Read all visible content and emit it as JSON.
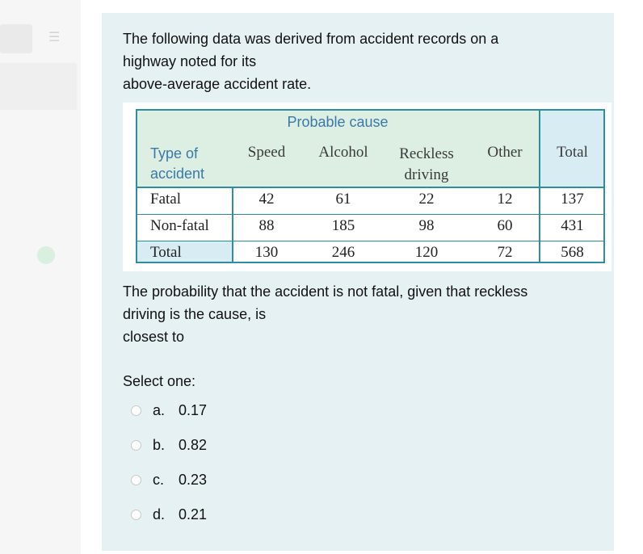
{
  "question": {
    "lines": [
      "The following data was derived from accident records on a",
      "highway noted for its",
      "above-average accident rate."
    ]
  },
  "table": {
    "group_header": "Probable cause",
    "row_header": [
      "Type of",
      "accident"
    ],
    "columns": [
      "Speed",
      "Alcohol",
      "Reckless",
      "driving",
      "Other",
      "Total"
    ],
    "rows": [
      {
        "label": "Fatal",
        "values": [
          "42",
          "61",
          "22",
          "12",
          "137"
        ]
      },
      {
        "label": "Non-fatal",
        "values": [
          "88",
          "185",
          "98",
          "60",
          "431"
        ]
      },
      {
        "label": "Total",
        "values": [
          "130",
          "246",
          "120",
          "72",
          "568"
        ]
      }
    ]
  },
  "followup": {
    "lines": [
      "The probability that the accident is not fatal, given that reckless",
      "driving is the cause, is",
      "closest to"
    ]
  },
  "select_label": "Select one:",
  "options": [
    {
      "letter": "a.",
      "value": "0.17"
    },
    {
      "letter": "b.",
      "value": "0.82"
    },
    {
      "letter": "c.",
      "value": "0.23"
    },
    {
      "letter": "d.",
      "value": "0.21"
    }
  ]
}
